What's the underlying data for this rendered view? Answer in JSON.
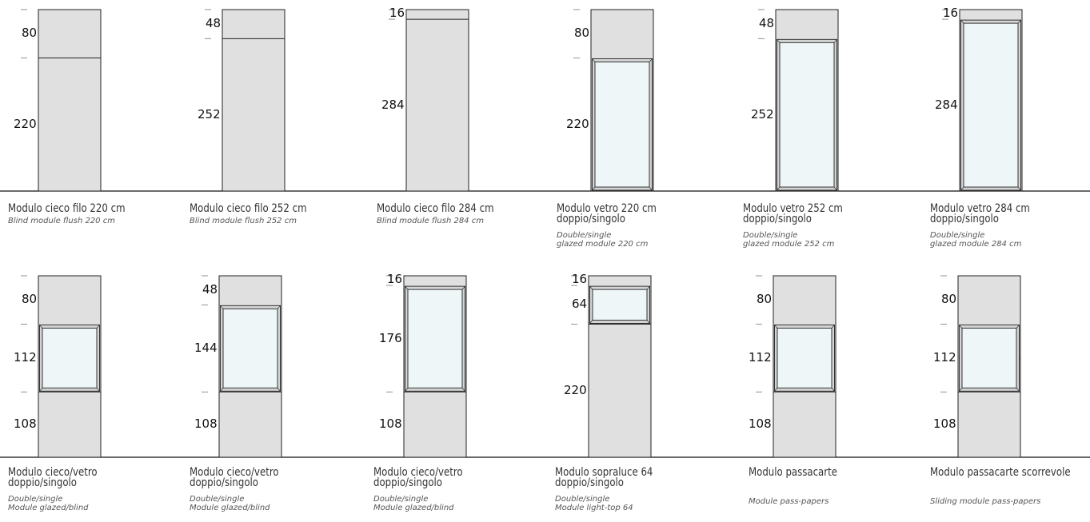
{
  "colors": {
    "panel": "#e0e0e0",
    "glass": "#eef6f8",
    "frame": "#d4d4d4",
    "outline": "#222222",
    "baseline": "#111111",
    "main_text": "#333333",
    "sub_text": "#555555"
  },
  "row1": [
    {
      "id": "r1m1",
      "title_lines": [
        "Modulo cieco filo 220 cm"
      ],
      "sub_lines": [
        "Blind module flush 220 cm"
      ],
      "segments": [
        {
          "kind": "blind",
          "size": 80,
          "label": "80"
        },
        {
          "kind": "blind",
          "size": 220,
          "label": "220"
        }
      ]
    },
    {
      "id": "r1m2",
      "title_lines": [
        "Modulo cieco filo 252 cm"
      ],
      "sub_lines": [
        "Blind module flush 252 cm"
      ],
      "segments": [
        {
          "kind": "blind",
          "size": 48,
          "label": "48"
        },
        {
          "kind": "blind",
          "size": 252,
          "label": "252"
        }
      ]
    },
    {
      "id": "r1m3",
      "title_lines": [
        "Modulo cieco filo 284 cm"
      ],
      "sub_lines": [
        "Blind module flush 284 cm"
      ],
      "segments": [
        {
          "kind": "blind",
          "size": 16,
          "label": "16"
        },
        {
          "kind": "blind",
          "size": 284,
          "label": "284"
        }
      ]
    },
    {
      "id": "r1m4",
      "title_lines": [
        "Modulo vetro 220 cm",
        "doppio/singolo"
      ],
      "sub_lines": [
        "Double/single",
        "glazed module 220 cm"
      ],
      "segments": [
        {
          "kind": "blind",
          "size": 80,
          "label": "80"
        },
        {
          "kind": "glass",
          "size": 220,
          "label": "220"
        }
      ]
    },
    {
      "id": "r1m5",
      "title_lines": [
        "Modulo vetro 252 cm",
        "doppio/singolo"
      ],
      "sub_lines": [
        "Double/single",
        "glazed module 252 cm"
      ],
      "segments": [
        {
          "kind": "blind",
          "size": 48,
          "label": "48"
        },
        {
          "kind": "glass",
          "size": 252,
          "label": "252"
        }
      ]
    },
    {
      "id": "r1m6",
      "title_lines": [
        "Modulo vetro 284 cm",
        "doppio/singolo"
      ],
      "sub_lines": [
        "Double/single",
        "glazed module 284 cm"
      ],
      "segments": [
        {
          "kind": "blind",
          "size": 16,
          "label": "16"
        },
        {
          "kind": "glass",
          "size": 284,
          "label": "284"
        }
      ]
    }
  ],
  "row2": [
    {
      "id": "r2m1",
      "title_lines": [
        "Modulo cieco/vetro",
        "doppio/singolo"
      ],
      "sub_lines": [
        "Double/single",
        "Module glazed/blind"
      ],
      "segments": [
        {
          "kind": "blind",
          "size": 80,
          "label": "80"
        },
        {
          "kind": "glass",
          "size": 112,
          "label": "112"
        },
        {
          "kind": "blind",
          "size": 108,
          "label": "108"
        }
      ]
    },
    {
      "id": "r2m2",
      "title_lines": [
        "Modulo cieco/vetro",
        "doppio/singolo"
      ],
      "sub_lines": [
        "Double/single",
        "Module glazed/blind"
      ],
      "segments": [
        {
          "kind": "blind",
          "size": 48,
          "label": "48"
        },
        {
          "kind": "glass",
          "size": 144,
          "label": "144"
        },
        {
          "kind": "blind",
          "size": 108,
          "label": "108"
        }
      ]
    },
    {
      "id": "r2m3",
      "title_lines": [
        "Modulo cieco/vetro",
        "doppio/singolo"
      ],
      "sub_lines": [
        "Double/single",
        "Module glazed/blind"
      ],
      "segments": [
        {
          "kind": "blind",
          "size": 16,
          "label": "16"
        },
        {
          "kind": "glass",
          "size": 176,
          "label": "176"
        },
        {
          "kind": "blind",
          "size": 108,
          "label": "108"
        }
      ]
    },
    {
      "id": "r2m4",
      "title_lines": [
        "Modulo sopraluce 64",
        "doppio/singolo"
      ],
      "sub_lines": [
        "Double/single",
        "Module light-top 64"
      ],
      "segments": [
        {
          "kind": "blind",
          "size": 16,
          "label": "16"
        },
        {
          "kind": "glass",
          "size": 64,
          "label": "64"
        },
        {
          "kind": "blind",
          "size": 220,
          "label": "220"
        }
      ]
    },
    {
      "id": "r2m5",
      "title_lines": [
        "Modulo passacarte"
      ],
      "sub_lines": [
        "Module pass-papers"
      ],
      "segments": [
        {
          "kind": "blind",
          "size": 80,
          "label": "80"
        },
        {
          "kind": "passpaper",
          "size": 112,
          "label": "112"
        },
        {
          "kind": "blind",
          "size": 108,
          "label": "108"
        }
      ]
    },
    {
      "id": "r2m6",
      "title_lines": [
        "Modulo passacarte scorrevole"
      ],
      "sub_lines": [
        "Sliding module pass-papers"
      ],
      "segments": [
        {
          "kind": "blind",
          "size": 80,
          "label": "80"
        },
        {
          "kind": "sliding",
          "size": 112,
          "label": "112"
        },
        {
          "kind": "blind",
          "size": 108,
          "label": "108"
        }
      ]
    }
  ]
}
